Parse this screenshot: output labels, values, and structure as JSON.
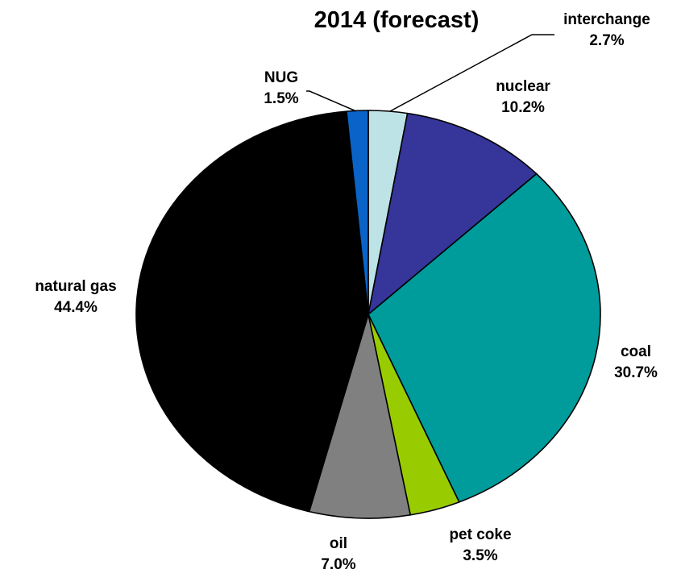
{
  "chart_data": {
    "type": "pie",
    "title": "2014 (forecast)",
    "slices": [
      {
        "label": "interchange",
        "value": 2.7,
        "value_label": "2.7%",
        "color": "#BDE3E6"
      },
      {
        "label": "nuclear",
        "value": 10.2,
        "value_label": "10.2%",
        "color": "#35359A"
      },
      {
        "label": "coal",
        "value": 30.7,
        "value_label": "30.7%",
        "color": "#009B9B"
      },
      {
        "label": "pet coke",
        "value": 3.5,
        "value_label": "3.5%",
        "color": "#99CC00"
      },
      {
        "label": "oil",
        "value": 7.0,
        "value_label": "7.0%",
        "color": "#808080"
      },
      {
        "label": "natural gas",
        "value": 44.4,
        "value_label": "44.4%",
        "color": "#000000"
      },
      {
        "label": "NUG",
        "value": 1.5,
        "value_label": "1.5%",
        "color": "#0A64C8"
      }
    ],
    "start": "12 o'clock",
    "direction": "clockwise"
  }
}
